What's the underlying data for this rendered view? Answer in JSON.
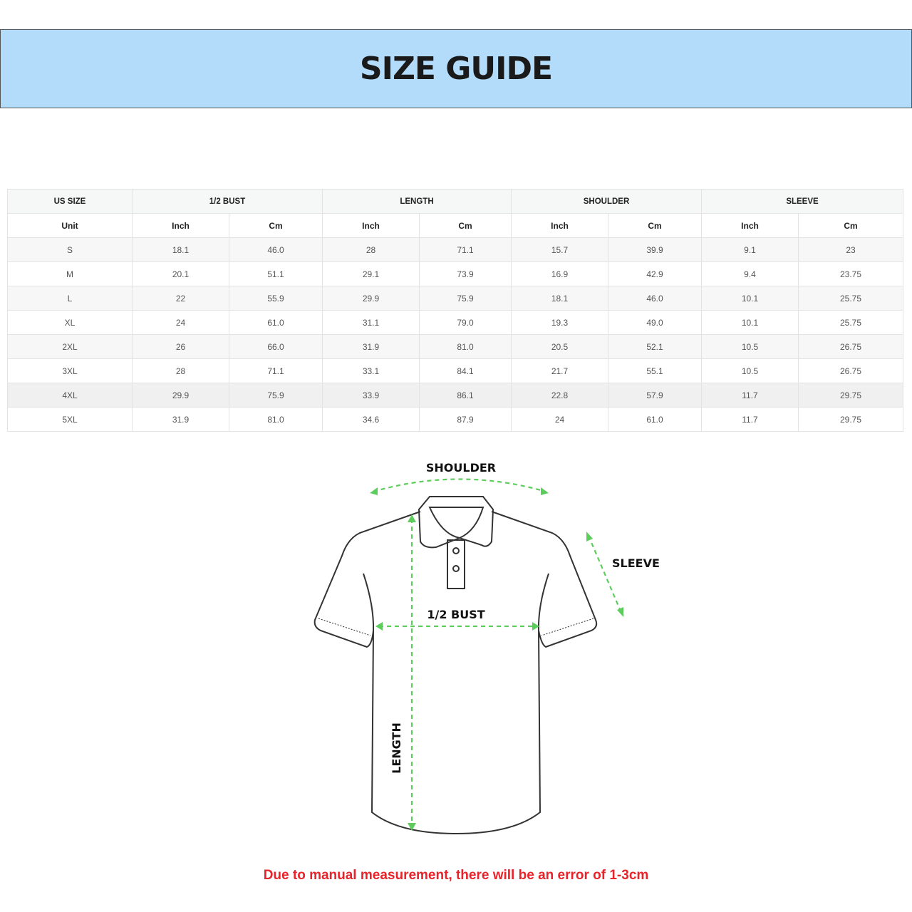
{
  "title": "SIZE GUIDE",
  "table": {
    "group_headers": [
      "US SIZE",
      "1/2 BUST",
      "LENGTH",
      "SHOULDER",
      "SLEEVE"
    ],
    "unit_headers": [
      "Unit",
      "Inch",
      "Cm",
      "Inch",
      "Cm",
      "Inch",
      "Cm",
      "Inch",
      "Cm"
    ],
    "rows": [
      [
        "S",
        "18.1",
        "46.0",
        "28",
        "71.1",
        "15.7",
        "39.9",
        "9.1",
        "23"
      ],
      [
        "M",
        "20.1",
        "51.1",
        "29.1",
        "73.9",
        "16.9",
        "42.9",
        "9.4",
        "23.75"
      ],
      [
        "L",
        "22",
        "55.9",
        "29.9",
        "75.9",
        "18.1",
        "46.0",
        "10.1",
        "25.75"
      ],
      [
        "XL",
        "24",
        "61.0",
        "31.1",
        "79.0",
        "19.3",
        "49.0",
        "10.1",
        "25.75"
      ],
      [
        "2XL",
        "26",
        "66.0",
        "31.9",
        "81.0",
        "20.5",
        "52.1",
        "10.5",
        "26.75"
      ],
      [
        "3XL",
        "28",
        "71.1",
        "33.1",
        "84.1",
        "21.7",
        "55.1",
        "10.5",
        "26.75"
      ],
      [
        "4XL",
        "29.9",
        "75.9",
        "33.9",
        "86.1",
        "22.8",
        "57.9",
        "11.7",
        "29.75"
      ],
      [
        "5XL",
        "31.9",
        "81.0",
        "34.6",
        "87.9",
        "24",
        "61.0",
        "11.7",
        "29.75"
      ]
    ]
  },
  "diagram": {
    "shoulder_label": "SHOULDER",
    "sleeve_label": "SLEEVE",
    "bust_label": "1/2 BUST",
    "length_label": "LENGTH",
    "arrow_color": "#5ccd5c"
  },
  "note": "Due to manual measurement, there will be an error of 1-3cm",
  "colors": {
    "banner": "#b3dcfb",
    "note": "#e8232a"
  }
}
